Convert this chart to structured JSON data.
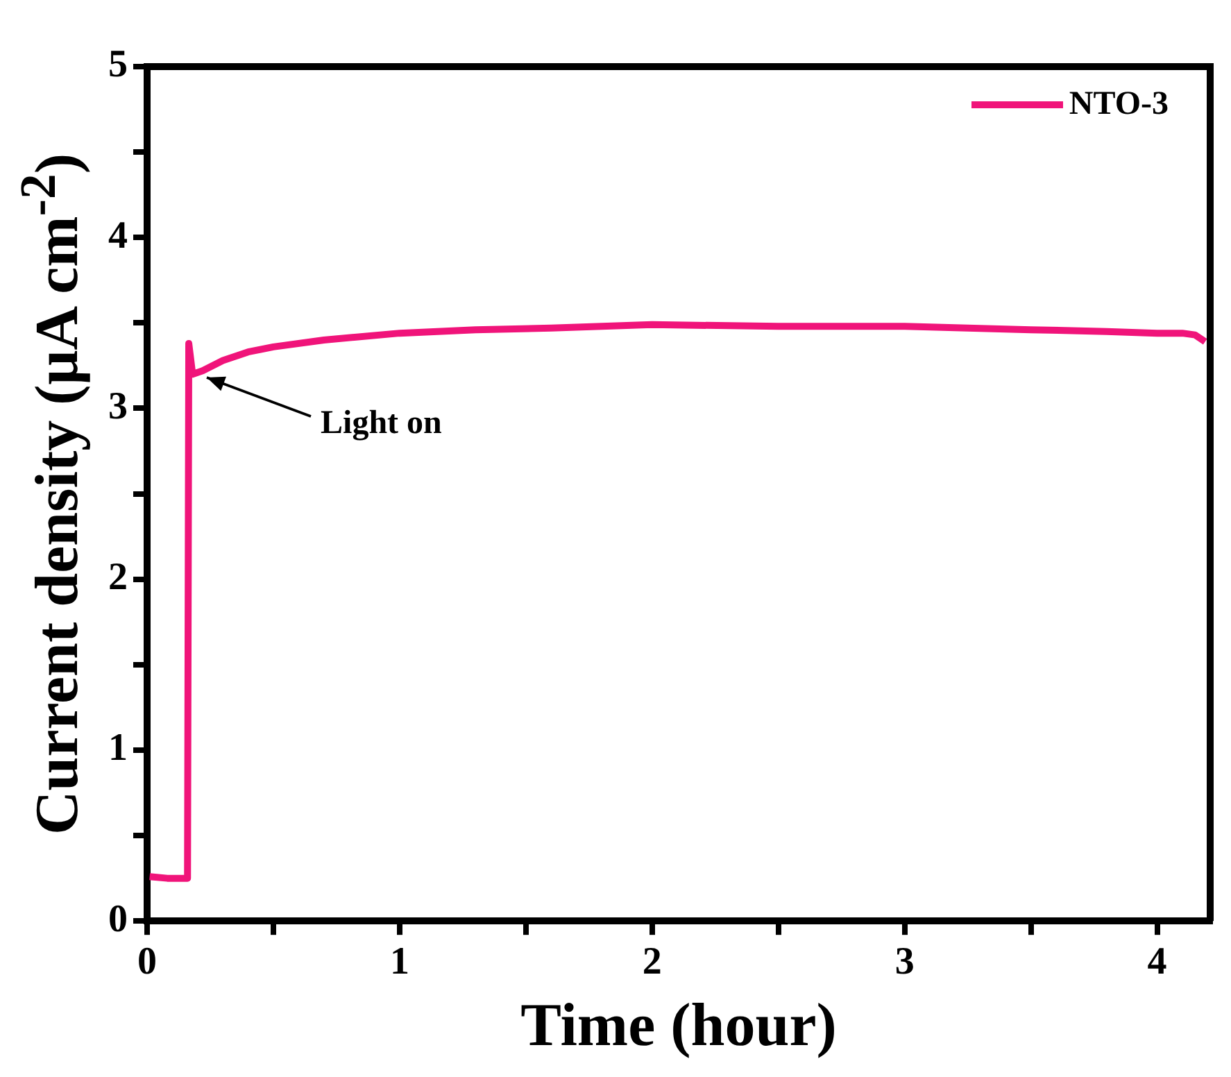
{
  "chart_data": {
    "type": "line",
    "xlabel": "Time (hour)",
    "ylabel": "Current density (μA cm$^{-2}$)",
    "xlim": [
      0,
      4.21
    ],
    "ylim": [
      0,
      5
    ],
    "xticks": [
      0,
      {
        "value": 0.5,
        "label": null
      },
      1,
      {
        "value": 1.5,
        "label": null
      },
      2,
      {
        "value": 2.5,
        "label": null
      },
      3,
      {
        "value": 3.5,
        "label": null
      },
      4
    ],
    "yticks": [
      0,
      {
        "value": 0.5,
        "label": null
      },
      1,
      {
        "value": 1.5,
        "label": null
      },
      2,
      {
        "value": 2.5,
        "label": null
      },
      3,
      {
        "value": 3.5,
        "label": null
      },
      4,
      {
        "value": 4.5,
        "label": null
      },
      5
    ],
    "grid": false,
    "legend": "top right",
    "marker": "none",
    "line_style": "solid",
    "series": [
      {
        "name": "NTO-3",
        "color": "#f0147a",
        "x": [
          0.01,
          0.08,
          0.16,
          0.165,
          0.18,
          0.22,
          0.3,
          0.4,
          0.5,
          0.7,
          1.0,
          1.3,
          1.6,
          2.0,
          2.5,
          3.0,
          3.5,
          3.8,
          4.0,
          4.1,
          4.15,
          4.19
        ],
        "values": [
          0.26,
          0.25,
          0.25,
          3.38,
          3.2,
          3.22,
          3.28,
          3.33,
          3.36,
          3.4,
          3.44,
          3.46,
          3.47,
          3.49,
          3.48,
          3.48,
          3.46,
          3.45,
          3.44,
          3.44,
          3.43,
          3.39
        ]
      }
    ],
    "annotations": [
      {
        "text": "Light on",
        "x": 0.22,
        "y": 3.2
      }
    ]
  }
}
